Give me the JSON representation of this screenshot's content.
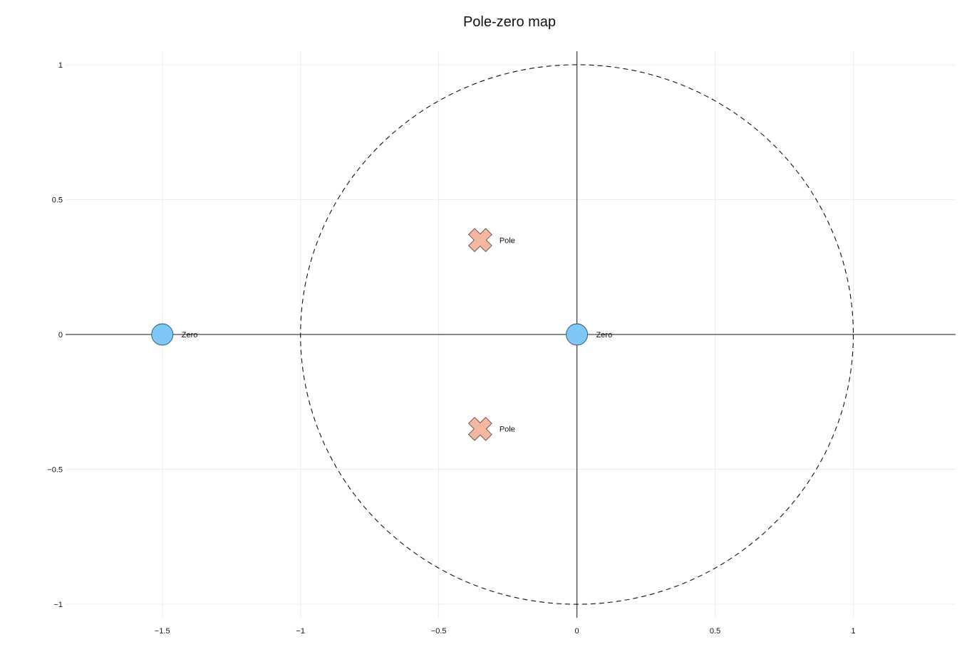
{
  "chart_data": {
    "type": "scatter",
    "title": "Pole-zero map",
    "xlabel": "",
    "ylabel": "",
    "xlim": [
      -1.85,
      1.37
    ],
    "ylim": [
      -1.05,
      1.05
    ],
    "x_ticks": [
      -1.5,
      -1,
      -0.5,
      0,
      0.5,
      1
    ],
    "x_tick_labels": [
      "−1.5",
      "−1",
      "−0.5",
      "0",
      "0.5",
      "1"
    ],
    "y_ticks": [
      -1,
      -0.5,
      0,
      0.5,
      1
    ],
    "y_tick_labels": [
      "−1",
      "−0.5",
      "0",
      "0.5",
      "1"
    ],
    "grid": true,
    "unit_circle": {
      "center": [
        0,
        0
      ],
      "radius": 1,
      "style": "dashed"
    },
    "series": [
      {
        "name": "Zero",
        "marker": "circle",
        "color": "#7ec8f8",
        "points": [
          {
            "x": -1.5,
            "y": 0,
            "label": "Zero"
          },
          {
            "x": 0,
            "y": 0,
            "label": "Zero"
          }
        ]
      },
      {
        "name": "Pole",
        "marker": "x",
        "color": "#f4b8a2",
        "points": [
          {
            "x": -0.35,
            "y": 0.35,
            "label": "Pole"
          },
          {
            "x": -0.35,
            "y": -0.35,
            "label": "Pole"
          }
        ]
      }
    ]
  }
}
